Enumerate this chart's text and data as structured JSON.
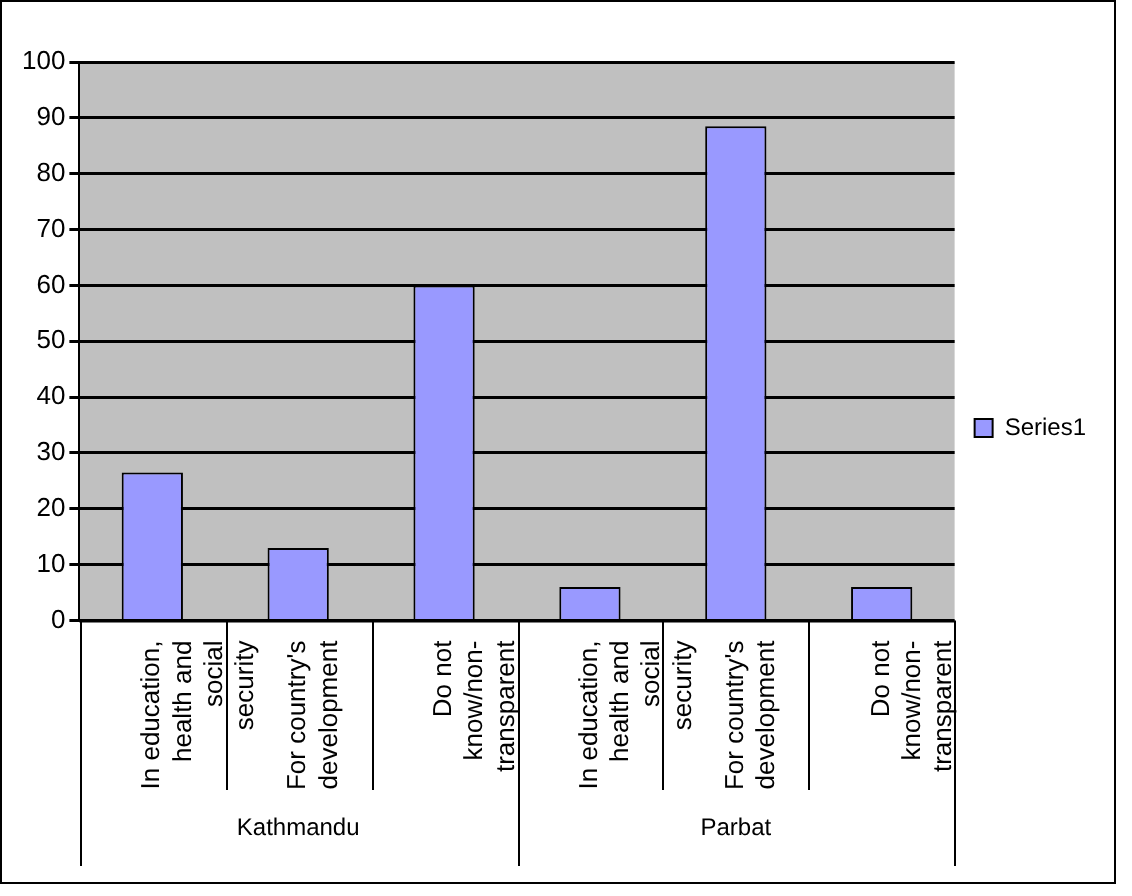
{
  "chart_data": {
    "type": "bar",
    "categories": [
      "In education, health and social security",
      "For country's development",
      "Do not know/non-transparent",
      "In education, health and social security",
      "For country's development",
      "Do not know/non-transparent"
    ],
    "series": [
      {
        "name": "Series1",
        "color": "#9999ff",
        "values": [
          26.5,
          13,
          60,
          6,
          88.5,
          6
        ]
      }
    ],
    "ylim": [
      0,
      100
    ],
    "yticks": [
      0,
      10,
      20,
      30,
      40,
      50,
      60,
      70,
      80,
      90,
      100
    ],
    "grid": "y",
    "legend": "right",
    "annotations": [
      "Kathmandu",
      "Parbat"
    ]
  }
}
